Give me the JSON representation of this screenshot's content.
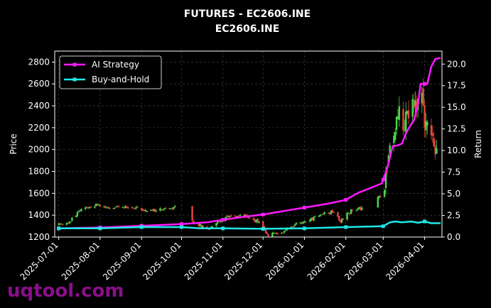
{
  "chart_data": {
    "type": "line",
    "title": "FUTURES - EC2606.INE",
    "subtitle": "EC2606.INE",
    "ylabel_left": "Price",
    "ylabel_right": "Return",
    "ylim_left": [
      1200,
      2900
    ],
    "ylim_right": [
      0,
      21.5
    ],
    "yticks_left": [
      1200,
      1400,
      1600,
      1800,
      2000,
      2200,
      2400,
      2600,
      2800
    ],
    "yticks_right": [
      "0.0",
      "2.5",
      "5.0",
      "7.5",
      "10.0",
      "12.5",
      "15.0",
      "17.5",
      "20.0"
    ],
    "x_start": "2025-06-28",
    "x_end": "2026-04-14",
    "xticks": [
      "2025-07-01",
      "2025-08-01",
      "2025-09-01",
      "2025-10-01",
      "2025-11-01",
      "2025-12-01",
      "2026-01-01",
      "2026-02-01",
      "2026-03-01",
      "2026-04-01"
    ],
    "grid": true,
    "legend_position": "top-left",
    "colors": {
      "background": "#000000",
      "up": "#4cd64c",
      "down": "#e8473b",
      "strategy": "#ff1aff",
      "buyhold": "#1fe8e8",
      "grid": "#444444",
      "watermark": "#8a0f8a"
    },
    "series": [
      {
        "name": "AI Strategy",
        "axis": "right",
        "points": [
          [
            "2025-07-01",
            1.0
          ],
          [
            "2025-08-01",
            1.1
          ],
          [
            "2025-09-01",
            1.3
          ],
          [
            "2025-10-01",
            1.5
          ],
          [
            "2025-10-20",
            1.7
          ],
          [
            "2025-11-01",
            2.0
          ],
          [
            "2025-11-20",
            2.4
          ],
          [
            "2025-12-01",
            2.6
          ],
          [
            "2025-12-20",
            3.1
          ],
          [
            "2026-01-01",
            3.4
          ],
          [
            "2026-01-20",
            3.9
          ],
          [
            "2026-02-01",
            4.3
          ],
          [
            "2026-02-10",
            5.1
          ],
          [
            "2026-02-20",
            5.7
          ],
          [
            "2026-02-28",
            6.2
          ],
          [
            "2026-03-03",
            7.5
          ],
          [
            "2026-03-05",
            8.5
          ],
          [
            "2026-03-08",
            10.5
          ],
          [
            "2026-03-12",
            10.6
          ],
          [
            "2026-03-15",
            10.8
          ],
          [
            "2026-03-18",
            12.0
          ],
          [
            "2026-03-21",
            12.8
          ],
          [
            "2026-03-24",
            13.5
          ],
          [
            "2026-03-27",
            15.3
          ],
          [
            "2026-03-29",
            17.7
          ],
          [
            "2026-04-03",
            17.7
          ],
          [
            "2026-04-06",
            19.7
          ],
          [
            "2026-04-09",
            20.6
          ],
          [
            "2026-04-13",
            20.7
          ]
        ]
      },
      {
        "name": "Buy-and-Hold",
        "axis": "right",
        "points": [
          [
            "2025-07-01",
            1.0
          ],
          [
            "2025-08-01",
            1.0
          ],
          [
            "2025-09-01",
            1.15
          ],
          [
            "2025-10-01",
            1.15
          ],
          [
            "2025-10-15",
            1.0
          ],
          [
            "2025-11-01",
            1.0
          ],
          [
            "2025-12-01",
            0.95
          ],
          [
            "2026-01-01",
            1.0
          ],
          [
            "2026-02-01",
            1.15
          ],
          [
            "2026-03-01",
            1.25
          ],
          [
            "2026-03-06",
            1.7
          ],
          [
            "2026-03-10",
            1.8
          ],
          [
            "2026-03-15",
            1.7
          ],
          [
            "2026-03-22",
            1.8
          ],
          [
            "2026-03-27",
            1.65
          ],
          [
            "2026-04-01",
            1.8
          ],
          [
            "2026-04-06",
            1.6
          ],
          [
            "2026-04-13",
            1.6
          ]
        ]
      }
    ],
    "candles": {
      "axis": "left",
      "anchors": [
        [
          "2025-07-01",
          1310
        ],
        [
          "2025-07-08",
          1320
        ],
        [
          "2025-07-15",
          1430
        ],
        [
          "2025-07-22",
          1480
        ],
        [
          "2025-08-01",
          1495
        ],
        [
          "2025-08-10",
          1460
        ],
        [
          "2025-08-20",
          1480
        ],
        [
          "2025-08-28",
          1470
        ],
        [
          "2025-09-05",
          1440
        ],
        [
          "2025-09-15",
          1450
        ],
        [
          "2025-09-24",
          1470
        ],
        [
          "2025-10-01",
          1460
        ],
        [
          "2025-10-10",
          1340
        ],
        [
          "2025-10-20",
          1270
        ],
        [
          "2025-10-28",
          1330
        ],
        [
          "2025-11-05",
          1390
        ],
        [
          "2025-11-15",
          1390
        ],
        [
          "2025-11-22",
          1380
        ],
        [
          "2025-11-28",
          1330
        ],
        [
          "2025-12-05",
          1220
        ],
        [
          "2025-12-15",
          1240
        ],
        [
          "2025-12-25",
          1320
        ],
        [
          "2026-01-05",
          1360
        ],
        [
          "2026-01-15",
          1410
        ],
        [
          "2026-01-22",
          1430
        ],
        [
          "2026-01-28",
          1350
        ],
        [
          "2026-02-05",
          1440
        ],
        [
          "2026-02-15",
          1480
        ],
        [
          "2026-02-25",
          1580
        ],
        [
          "2026-03-01",
          1560
        ],
        [
          "2026-03-05",
          1900
        ],
        [
          "2026-03-08",
          2100
        ],
        [
          "2026-03-12",
          2350
        ],
        [
          "2026-03-16",
          2250
        ],
        [
          "2026-03-20",
          2350
        ],
        [
          "2026-03-25",
          2450
        ],
        [
          "2026-03-28",
          2500
        ],
        [
          "2026-04-01",
          2300
        ],
        [
          "2026-04-05",
          2150
        ],
        [
          "2026-04-08",
          2000
        ],
        [
          "2026-04-12",
          2030
        ]
      ],
      "gaps": [
        [
          "2025-09-29",
          "2025-10-08"
        ],
        [
          "2026-02-14",
          "2026-02-24"
        ]
      ]
    }
  },
  "watermark": "uqtool.com"
}
